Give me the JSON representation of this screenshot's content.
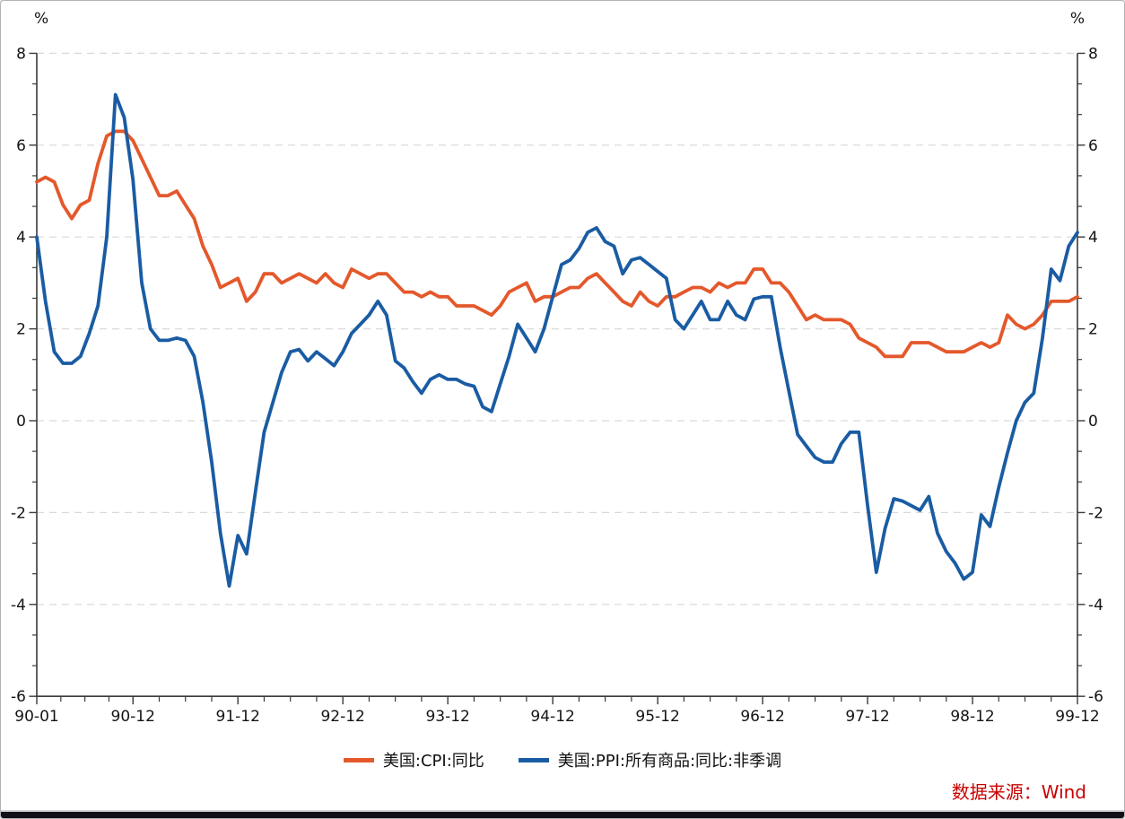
{
  "chart_data": {
    "type": "line",
    "title": "",
    "unit_left": "%",
    "unit_right": "%",
    "x_start": "1990-01",
    "x_end": "1999-12",
    "frequency": "monthly",
    "ylim": [
      -6,
      8
    ],
    "y_major_step": 2,
    "grid": "dashed-horizontal-major",
    "legend_position": "bottom-center",
    "axis_color": "#3a3a3a",
    "grid_color": "#d9d9d9",
    "y_ticks": [
      8,
      6,
      4,
      2,
      0,
      -2,
      -4,
      -6
    ],
    "x_ticks": [
      {
        "i": 0,
        "label": "90-01"
      },
      {
        "i": 11,
        "label": "90-12"
      },
      {
        "i": 23,
        "label": "91-12"
      },
      {
        "i": 35,
        "label": "92-12"
      },
      {
        "i": 47,
        "label": "93-12"
      },
      {
        "i": 59,
        "label": "94-12"
      },
      {
        "i": 71,
        "label": "95-12"
      },
      {
        "i": 83,
        "label": "96-12"
      },
      {
        "i": 95,
        "label": "97-12"
      },
      {
        "i": 107,
        "label": "98-12"
      },
      {
        "i": 119,
        "label": "99-12"
      }
    ],
    "series": [
      {
        "name": "美国:CPI:同比",
        "color": "#E4582B",
        "values": [
          5.2,
          5.3,
          5.2,
          4.7,
          4.4,
          4.7,
          4.8,
          5.6,
          6.2,
          6.3,
          6.3,
          6.1,
          5.7,
          5.3,
          4.9,
          4.9,
          5.0,
          4.7,
          4.4,
          3.8,
          3.4,
          2.9,
          3.0,
          3.1,
          2.6,
          2.8,
          3.2,
          3.2,
          3.0,
          3.1,
          3.2,
          3.1,
          3.0,
          3.2,
          3.0,
          2.9,
          3.3,
          3.2,
          3.1,
          3.2,
          3.2,
          3.0,
          2.8,
          2.8,
          2.7,
          2.8,
          2.7,
          2.7,
          2.5,
          2.5,
          2.5,
          2.4,
          2.3,
          2.5,
          2.8,
          2.9,
          3.0,
          2.6,
          2.7,
          2.7,
          2.8,
          2.9,
          2.9,
          3.1,
          3.2,
          3.0,
          2.8,
          2.6,
          2.5,
          2.8,
          2.6,
          2.5,
          2.7,
          2.7,
          2.8,
          2.9,
          2.9,
          2.8,
          3.0,
          2.9,
          3.0,
          3.0,
          3.3,
          3.3,
          3.0,
          3.0,
          2.8,
          2.5,
          2.2,
          2.3,
          2.2,
          2.2,
          2.2,
          2.1,
          1.8,
          1.7,
          1.6,
          1.4,
          1.4,
          1.4,
          1.7,
          1.7,
          1.7,
          1.6,
          1.5,
          1.5,
          1.5,
          1.6,
          1.7,
          1.6,
          1.7,
          2.3,
          2.1,
          2.0,
          2.1,
          2.3,
          2.6,
          2.6,
          2.6,
          2.7
        ]
      },
      {
        "name": "美国:PPI:所有商品:同比:非季调",
        "color": "#1A5CA3",
        "values": [
          4.0,
          2.6,
          1.5,
          1.25,
          1.25,
          1.4,
          1.9,
          2.5,
          4.0,
          7.1,
          6.6,
          5.25,
          3.0,
          2.0,
          1.75,
          1.75,
          1.8,
          1.75,
          1.4,
          0.4,
          -0.9,
          -2.45,
          -3.6,
          -2.5,
          -2.9,
          -1.55,
          -0.25,
          0.4,
          1.05,
          1.5,
          1.55,
          1.3,
          1.5,
          1.35,
          1.2,
          1.5,
          1.9,
          2.1,
          2.3,
          2.6,
          2.3,
          1.3,
          1.15,
          0.85,
          0.6,
          0.9,
          1.0,
          0.9,
          0.9,
          0.8,
          0.75,
          0.3,
          0.2,
          0.8,
          1.4,
          2.1,
          1.8,
          1.5,
          2.0,
          2.7,
          3.4,
          3.5,
          3.75,
          4.1,
          4.2,
          3.9,
          3.8,
          3.2,
          3.5,
          3.55,
          3.4,
          3.25,
          3.1,
          2.2,
          2.0,
          2.3,
          2.6,
          2.2,
          2.2,
          2.6,
          2.3,
          2.2,
          2.65,
          2.7,
          2.7,
          1.6,
          0.65,
          -0.3,
          -0.55,
          -0.8,
          -0.9,
          -0.9,
          -0.5,
          -0.25,
          -0.25,
          -1.85,
          -3.3,
          -2.35,
          -1.7,
          -1.75,
          -1.85,
          -1.95,
          -1.65,
          -2.45,
          -2.85,
          -3.1,
          -3.45,
          -3.3,
          -2.05,
          -2.3,
          -1.45,
          -0.7,
          0.0,
          0.4,
          0.6,
          1.8,
          3.3,
          3.05,
          3.8,
          4.1
        ]
      }
    ]
  },
  "footer": {
    "source": "数据来源：Wind",
    "source_color": "#C80000"
  }
}
